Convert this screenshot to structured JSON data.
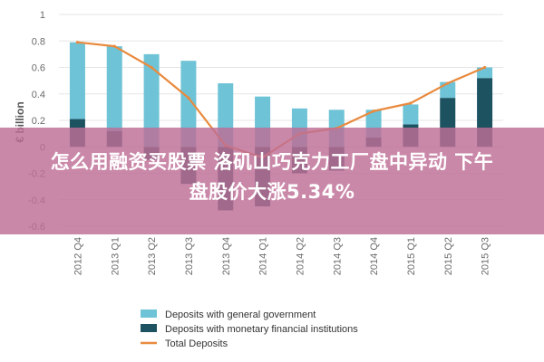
{
  "colors": {
    "general_government": "#6ec3d6",
    "monetary_institutions": "#1d5260",
    "total_deposits": "#e98a3e",
    "banner_bg": "#be6e96"
  },
  "chart_data": {
    "type": "bar",
    "ylabel": "€ billion",
    "ylim": [
      -0.6,
      1
    ],
    "yticks": [
      1,
      0.8,
      0.6,
      0.4,
      0.2,
      0,
      -0.2,
      -0.4,
      -0.6
    ],
    "categories": [
      "2012 Q4",
      "2013 Q1",
      "2013 Q2",
      "2013 Q3",
      "2013 Q4",
      "2014 Q1",
      "2014 Q2",
      "2014 Q3",
      "2014 Q4",
      "2015 Q1",
      "2015 Q2",
      "2015 Q3"
    ],
    "series": [
      {
        "name": "Deposits with general government",
        "kind": "stacked-bar",
        "values": [
          0.58,
          0.64,
          0.7,
          0.65,
          0.48,
          0.38,
          0.29,
          0.28,
          0.21,
          0.15,
          0.12,
          0.08
        ]
      },
      {
        "name": "Deposits with monetary financial institutions",
        "kind": "stacked-bar",
        "values": [
          0.21,
          0.12,
          -0.1,
          -0.28,
          -0.48,
          -0.45,
          -0.2,
          -0.18,
          0.07,
          0.17,
          0.37,
          0.52
        ]
      },
      {
        "name": "Total Deposits",
        "kind": "line",
        "values": [
          0.79,
          0.76,
          0.6,
          0.37,
          0.01,
          -0.08,
          0.1,
          0.14,
          0.27,
          0.33,
          0.48,
          0.6
        ]
      }
    ],
    "legend": "bottom"
  },
  "banner": {
    "line1": "怎么用融资买股票 洛矶山巧克力工厂盘中异动 下午",
    "line2": "盘股价大涨5.34%"
  }
}
